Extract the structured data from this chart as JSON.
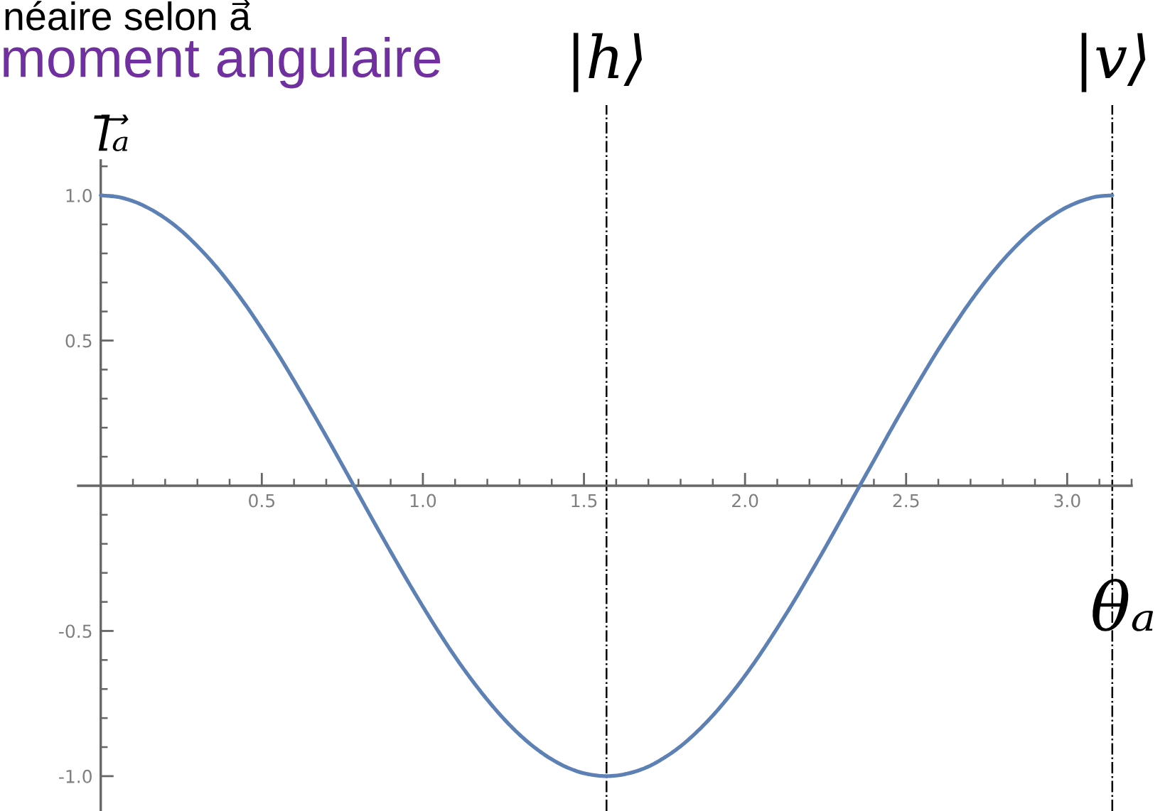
{
  "chart_data": {
    "type": "line",
    "xlabel": "θₐ",
    "ylabel": "l̄ₐ⃗",
    "annotations": [
      "néaire selon a⃗",
      "moment angulaire"
    ],
    "x": [
      0,
      0.05,
      0.1,
      0.15,
      0.2,
      0.25,
      0.3,
      0.35,
      0.4,
      0.45,
      0.5,
      0.55,
      0.6,
      0.65,
      0.7,
      0.75,
      0.8,
      0.85,
      0.9,
      0.95,
      1.0,
      1.05,
      1.1,
      1.15,
      1.2,
      1.25,
      1.3,
      1.35,
      1.4,
      1.45,
      1.5,
      1.55,
      1.57,
      1.6,
      1.65,
      1.7,
      1.75,
      1.8,
      1.85,
      1.9,
      1.95,
      2.0,
      2.05,
      2.1,
      2.15,
      2.2,
      2.25,
      2.3,
      2.35,
      2.4,
      2.45,
      2.5,
      2.55,
      2.6,
      2.65,
      2.7,
      2.75,
      2.8,
      2.85,
      2.9,
      2.95,
      3.0,
      3.05,
      3.1,
      3.14
    ],
    "values": [
      1.0,
      0.995,
      0.98,
      0.955,
      0.921,
      0.878,
      0.825,
      0.765,
      0.697,
      0.622,
      0.54,
      0.454,
      0.362,
      0.267,
      0.17,
      0.071,
      -0.029,
      -0.129,
      -0.227,
      -0.323,
      -0.416,
      -0.505,
      -0.589,
      -0.666,
      -0.737,
      -0.801,
      -0.857,
      -0.904,
      -0.942,
      -0.971,
      -0.99,
      -0.999,
      -1.0,
      -0.998,
      -0.987,
      -0.967,
      -0.936,
      -0.897,
      -0.848,
      -0.791,
      -0.726,
      -0.654,
      -0.575,
      -0.49,
      -0.401,
      -0.307,
      -0.211,
      -0.112,
      -0.012,
      0.087,
      0.187,
      0.284,
      0.378,
      0.469,
      0.554,
      0.635,
      0.709,
      0.776,
      0.835,
      0.886,
      0.927,
      0.96,
      0.983,
      0.997,
      1.0
    ],
    "color": "#5e81b5",
    "line_style": "solid",
    "xlim": [
      -0.07,
      3.2
    ],
    "ylim": [
      -1.12,
      1.12
    ],
    "xticks": [
      {
        "value": 0.1,
        "label": null
      },
      {
        "value": 0.2,
        "label": null
      },
      {
        "value": 0.3,
        "label": null
      },
      {
        "value": 0.4,
        "label": null
      },
      0.5,
      {
        "value": 0.6,
        "label": null
      },
      {
        "value": 0.7,
        "label": null
      },
      {
        "value": 0.8,
        "label": null
      },
      {
        "value": 0.9,
        "label": null
      },
      {
        "value": 1,
        "label": "1.0"
      },
      {
        "value": 1.1,
        "label": null
      },
      {
        "value": 1.2,
        "label": null
      },
      {
        "value": 1.3,
        "label": null
      },
      {
        "value": 1.4,
        "label": null
      },
      1.5,
      {
        "value": 1.6,
        "label": null
      },
      {
        "value": 1.7,
        "label": null
      },
      {
        "value": 1.8,
        "label": null
      },
      {
        "value": 1.9,
        "label": null
      },
      {
        "value": 2,
        "label": "2.0"
      },
      {
        "value": 2.1,
        "label": null
      },
      {
        "value": 2.2,
        "label": null
      },
      {
        "value": 2.3,
        "label": null
      },
      {
        "value": 2.4,
        "label": null
      },
      2.5,
      {
        "value": 2.6,
        "label": null
      },
      {
        "value": 2.7,
        "label": null
      },
      {
        "value": 2.8,
        "label": null
      },
      {
        "value": 2.9,
        "label": null
      },
      {
        "value": 3,
        "label": "3.0"
      },
      {
        "value": 3.1,
        "label": null
      },
      {
        "value": 3.2,
        "label": null
      }
    ],
    "yticks": [
      {
        "value": -1,
        "label": "-1.0"
      },
      {
        "value": -0.9,
        "label": null
      },
      {
        "value": -0.8,
        "label": null
      },
      {
        "value": -0.7,
        "label": null
      },
      {
        "value": -0.6,
        "label": null
      },
      -0.5,
      {
        "value": -0.4,
        "label": null
      },
      {
        "value": -0.3,
        "label": null
      },
      {
        "value": -0.2,
        "label": null
      },
      {
        "value": -0.1,
        "label": null
      },
      {
        "value": 0.1,
        "label": null
      },
      {
        "value": 0.2,
        "label": null
      },
      {
        "value": 0.3,
        "label": null
      },
      {
        "value": 0.4,
        "label": null
      },
      0.5,
      {
        "value": 0.6,
        "label": null
      },
      {
        "value": 0.7,
        "label": null
      },
      {
        "value": 0.8,
        "label": null
      },
      {
        "value": 0.9,
        "label": null
      },
      {
        "value": 1,
        "label": "1.0"
      },
      {
        "value": 1.1,
        "label": null
      }
    ],
    "ref_lines": [
      {
        "axis": "x",
        "value": 1.57,
        "label": "|h⟩",
        "color": "#000000",
        "line_style": "dashdot"
      },
      {
        "axis": "x",
        "value": 3.14,
        "label": "|v⟩",
        "color": "#000000",
        "line_style": "dashdot"
      }
    ]
  }
}
